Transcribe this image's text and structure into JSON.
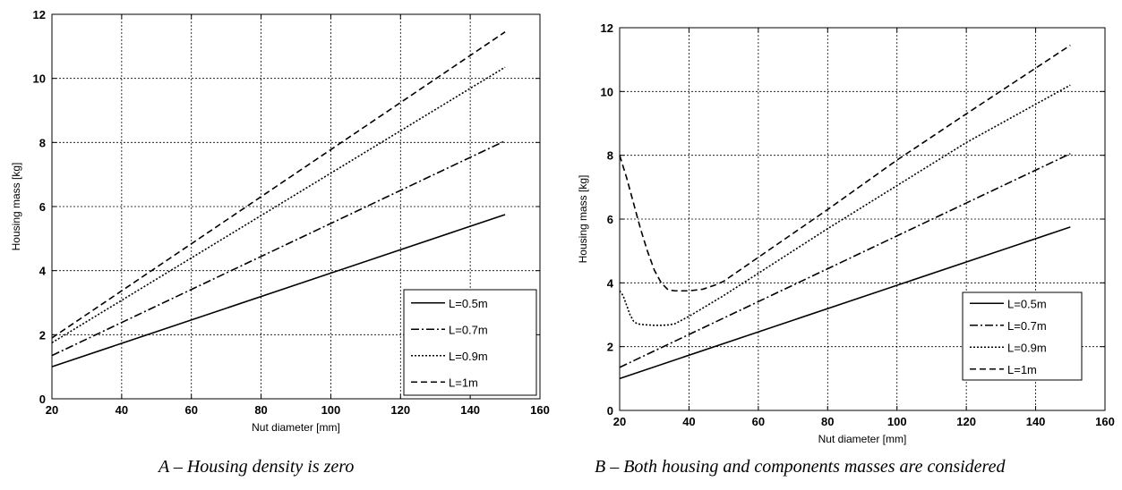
{
  "captions": {
    "a": "A – Housing density is zero",
    "b": "B – Both housing and components masses are considered"
  },
  "chart_data": [
    {
      "type": "line",
      "xlabel": "Nut diameter [mm]",
      "ylabel": "Housing mass [kg]",
      "xlim": [
        20,
        160
      ],
      "ylim": [
        0,
        12
      ],
      "xticks": [
        20,
        40,
        60,
        80,
        100,
        120,
        140,
        160
      ],
      "yticks": [
        0,
        2,
        4,
        6,
        8,
        10,
        12
      ],
      "grid": true,
      "legend_position": "bottom-right",
      "series": [
        {
          "name": "L=0.5m",
          "dash": "solid",
          "x": [
            20,
            150
          ],
          "y": [
            1.0,
            5.75
          ]
        },
        {
          "name": "L=0.7m",
          "dash": "dashdot",
          "x": [
            20,
            150
          ],
          "y": [
            1.35,
            8.05
          ]
        },
        {
          "name": "L=0.9m",
          "dash": "dotted",
          "x": [
            20,
            150
          ],
          "y": [
            1.75,
            10.35
          ]
        },
        {
          "name": "L=1m",
          "dash": "dashed",
          "x": [
            20,
            150
          ],
          "y": [
            1.9,
            11.45
          ]
        }
      ]
    },
    {
      "type": "line",
      "xlabel": "Nut diameter [mm]",
      "ylabel": "Housing mass [kg]",
      "xlim": [
        20,
        160
      ],
      "ylim": [
        0,
        12
      ],
      "xticks": [
        20,
        40,
        60,
        80,
        100,
        120,
        140,
        160
      ],
      "yticks": [
        0,
        2,
        4,
        6,
        8,
        10,
        12
      ],
      "grid": true,
      "legend_position": "bottom-right",
      "series": [
        {
          "name": "L=0.5m",
          "dash": "solid",
          "x": [
            20,
            150
          ],
          "y": [
            1.0,
            5.75
          ]
        },
        {
          "name": "L=0.7m",
          "dash": "dashdot",
          "x": [
            20,
            150
          ],
          "y": [
            1.35,
            8.05
          ]
        },
        {
          "name": "L=0.9m",
          "dash": "dotted",
          "x": [
            20,
            21,
            22,
            23,
            24,
            25,
            26,
            28,
            30,
            32,
            34,
            36,
            40,
            50,
            60,
            80,
            100,
            120,
            150
          ],
          "y": [
            3.75,
            3.6,
            3.3,
            3.0,
            2.8,
            2.72,
            2.7,
            2.68,
            2.67,
            2.67,
            2.68,
            2.72,
            2.95,
            3.6,
            4.3,
            5.7,
            7.05,
            8.4,
            10.2
          ]
        },
        {
          "name": "L=1m",
          "dash": "dashed",
          "x": [
            20,
            22,
            24,
            26,
            28,
            30,
            32,
            34,
            36,
            38,
            40,
            44,
            48,
            50,
            60,
            80,
            100,
            120,
            150
          ],
          "y": [
            8.0,
            7.3,
            6.5,
            5.7,
            5.0,
            4.4,
            4.0,
            3.78,
            3.75,
            3.75,
            3.75,
            3.8,
            3.95,
            4.05,
            4.8,
            6.3,
            7.85,
            9.3,
            11.45
          ]
        }
      ]
    }
  ]
}
